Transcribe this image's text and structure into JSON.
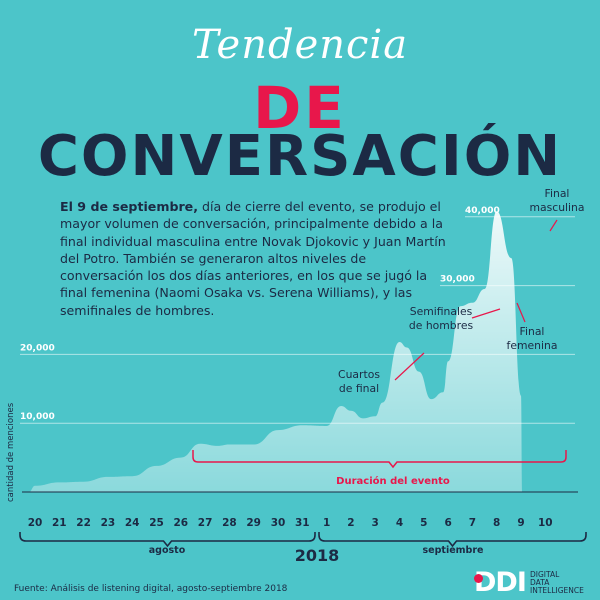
{
  "title": {
    "line1": "Tendencia",
    "line2": "DE",
    "line3": "CONVERSACIÓN"
  },
  "intro": {
    "bold": "El 9 de septiembre,",
    "text": " día de cierre del evento, se produjo el mayor volumen de conversación, principalmente debido a la final individual masculina entre Novak Djokovic y Juan Martín del Potro. También se generaron altos niveles de conversación los dos días anteriores, en los que se jugó la final femenina (Naomi Osaka vs. Serena Williams), y las semifinales de hombres."
  },
  "chart_data": {
    "type": "area",
    "ylabel": "cantidad de menciones",
    "ylim": [
      0,
      42000
    ],
    "yticks": [
      10000,
      20000,
      30000,
      40000
    ],
    "ytick_labels": [
      "10,000",
      "20,000",
      "30,000",
      "40,000"
    ],
    "x": [
      "20",
      "21",
      "22",
      "23",
      "24",
      "25",
      "26",
      "27",
      "28",
      "29",
      "30",
      "31",
      "1",
      "2",
      "3",
      "4",
      "5",
      "6",
      "7",
      "8",
      "9",
      "10"
    ],
    "series": [
      {
        "name": "menciones",
        "points": [
          [
            19.75,
            0
          ],
          [
            20,
            900
          ],
          [
            21,
            1400
          ],
          [
            22,
            1500
          ],
          [
            23,
            2200
          ],
          [
            24,
            2300
          ],
          [
            25,
            3800
          ],
          [
            26,
            5000
          ],
          [
            26.8,
            7000
          ],
          [
            27.5,
            6700
          ],
          [
            28,
            6900
          ],
          [
            29,
            6900
          ],
          [
            30,
            9000
          ],
          [
            31,
            9700
          ],
          [
            32,
            9600
          ],
          [
            32.6,
            12500
          ],
          [
            33,
            11800
          ],
          [
            33.5,
            10700
          ],
          [
            34,
            11000
          ],
          [
            34.3,
            13000
          ],
          [
            35,
            21800
          ],
          [
            35.3,
            21000
          ],
          [
            35.8,
            17500
          ],
          [
            36.3,
            13500
          ],
          [
            36.8,
            14500
          ],
          [
            37,
            19000
          ],
          [
            37.5,
            27000
          ],
          [
            38,
            27500
          ],
          [
            38.5,
            29500
          ],
          [
            39,
            40800
          ],
          [
            39.6,
            34000
          ],
          [
            40,
            14000
          ],
          [
            40.05,
            0
          ]
        ]
      }
    ],
    "annotations": [
      {
        "id": "final-masculina",
        "text": "Final masculina",
        "lines": [
          "Final",
          "masculina"
        ]
      },
      {
        "id": "semifinales",
        "text": "Semifinales de hombres",
        "lines": [
          "Semifinales",
          "de hombres"
        ]
      },
      {
        "id": "final-femenina",
        "text": "Final femenina",
        "lines": [
          "Final",
          "femenina"
        ]
      },
      {
        "id": "cuartos",
        "text": "Cuartos de final",
        "lines": [
          "Cuartos",
          "de final"
        ]
      }
    ],
    "event_label": "Duración del evento",
    "month_labels": [
      "agosto",
      "septiembre"
    ],
    "year": "2018"
  },
  "source": "Fuente: Análisis de listening digital, agosto-septiembre 2018",
  "logo": {
    "mark": "DDI",
    "line1": "DIGITAL",
    "line2": "DATA",
    "line3": "INTELLIGENCE"
  },
  "colors": {
    "background": "#4cc5c9",
    "accent": "#e8174b",
    "navy": "#1c2a44",
    "area": "#ffffff"
  }
}
